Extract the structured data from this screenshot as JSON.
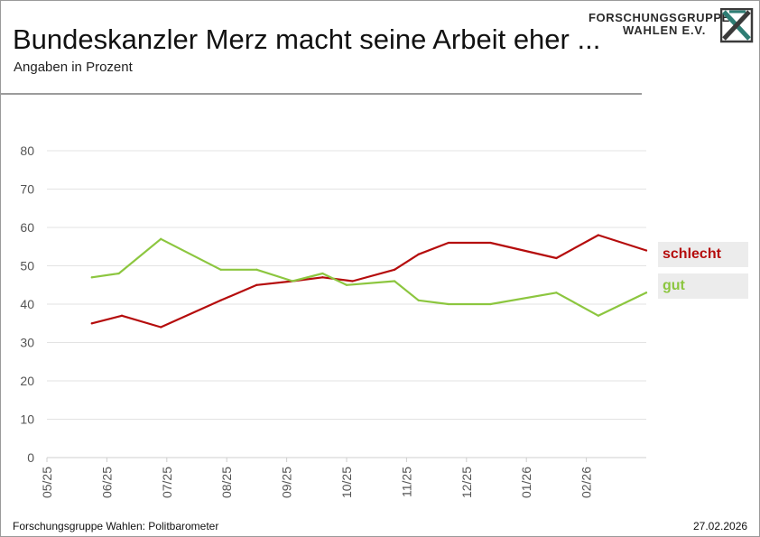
{
  "header": {
    "title": "Bundeskanzler Merz macht seine Arbeit eher ...",
    "subtitle": "Angaben in Prozent"
  },
  "logo": {
    "line1": "FORSCHUNGSGRUPPE",
    "line2": "WAHLEN E.V.",
    "accent_color": "#2e7d74",
    "mark_color": "#3a3a3a"
  },
  "footer": {
    "source": "Forschungsgruppe Wahlen: Politbarometer",
    "date": "27.02.2026"
  },
  "legend": {
    "bad_label": "schlecht",
    "good_label": "gut"
  },
  "chart_data": {
    "type": "line",
    "title": "Bundeskanzler Merz macht seine Arbeit eher ...",
    "ylabel": "Angaben in Prozent",
    "xlabel": "",
    "ylim": [
      0,
      80
    ],
    "yticks": [
      0,
      10,
      20,
      30,
      40,
      50,
      60,
      70,
      80
    ],
    "xlim_months": [
      0,
      10
    ],
    "xticks": [
      {
        "label": "05/25",
        "t": 0
      },
      {
        "label": "06/25",
        "t": 1
      },
      {
        "label": "07/25",
        "t": 2
      },
      {
        "label": "08/25",
        "t": 3
      },
      {
        "label": "09/25",
        "t": 4
      },
      {
        "label": "10/25",
        "t": 5
      },
      {
        "label": "11/25",
        "t": 6
      },
      {
        "label": "12/25",
        "t": 7
      },
      {
        "label": "01/26",
        "t": 8
      },
      {
        "label": "02/26",
        "t": 9
      }
    ],
    "grid": true,
    "series": [
      {
        "name": "schlecht",
        "color": "#b50c0c",
        "points": [
          {
            "t": 0.75,
            "v": 35
          },
          {
            "t": 1.25,
            "v": 37
          },
          {
            "t": 1.9,
            "v": 34
          },
          {
            "t": 2.9,
            "v": 41
          },
          {
            "t": 3.5,
            "v": 45
          },
          {
            "t": 4.1,
            "v": 46
          },
          {
            "t": 4.6,
            "v": 47
          },
          {
            "t": 5.1,
            "v": 46
          },
          {
            "t": 5.8,
            "v": 49
          },
          {
            "t": 6.2,
            "v": 53
          },
          {
            "t": 6.7,
            "v": 56
          },
          {
            "t": 7.4,
            "v": 56
          },
          {
            "t": 8.5,
            "v": 52
          },
          {
            "t": 9.2,
            "v": 58
          },
          {
            "t": 10.0,
            "v": 54
          }
        ]
      },
      {
        "name": "gut",
        "color": "#8cc63f",
        "points": [
          {
            "t": 0.75,
            "v": 47
          },
          {
            "t": 1.2,
            "v": 48
          },
          {
            "t": 1.9,
            "v": 57
          },
          {
            "t": 2.9,
            "v": 49
          },
          {
            "t": 3.5,
            "v": 49
          },
          {
            "t": 4.1,
            "v": 46
          },
          {
            "t": 4.6,
            "v": 48
          },
          {
            "t": 5.0,
            "v": 45
          },
          {
            "t": 5.8,
            "v": 46
          },
          {
            "t": 6.2,
            "v": 41
          },
          {
            "t": 6.7,
            "v": 40
          },
          {
            "t": 7.4,
            "v": 40
          },
          {
            "t": 8.5,
            "v": 43
          },
          {
            "t": 9.2,
            "v": 37
          },
          {
            "t": 10.0,
            "v": 43
          }
        ]
      }
    ]
  }
}
